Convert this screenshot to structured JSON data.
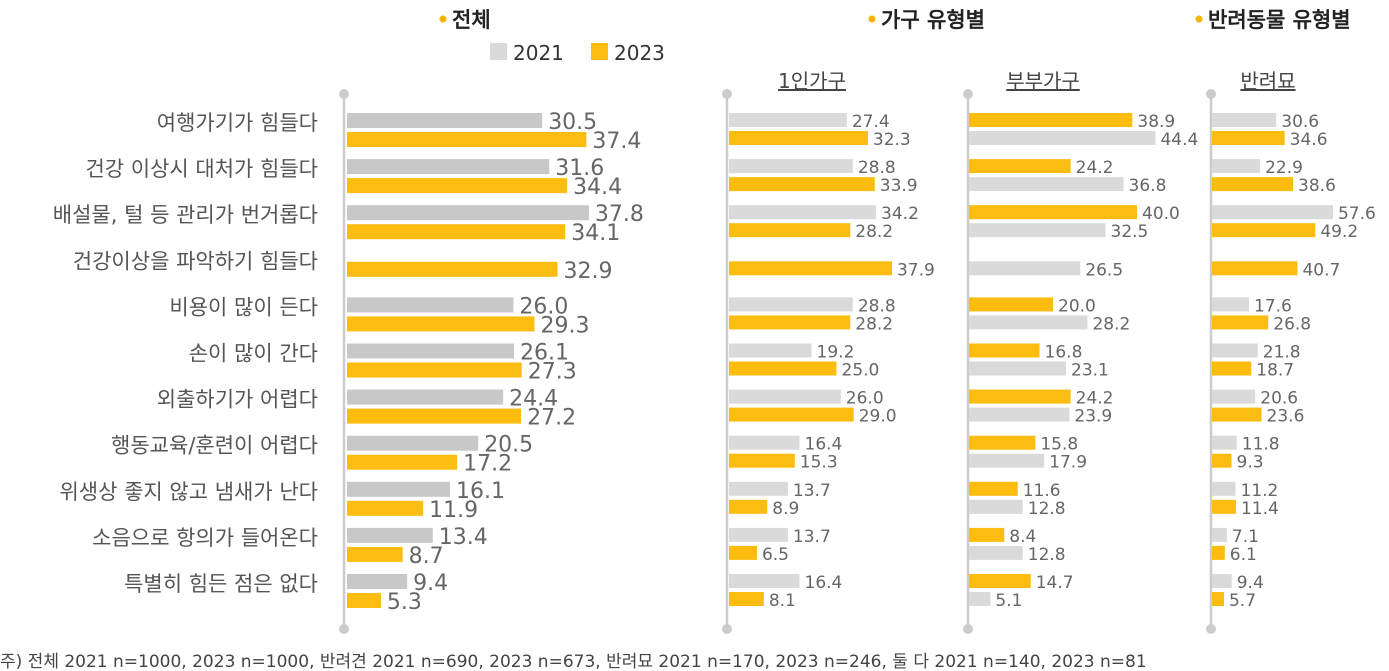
{
  "colors": {
    "y2021": "#dadada",
    "y2021_main": "#c8c8c8",
    "y2023": "#fcbd10",
    "dot": "#f5b400",
    "axis": "#cccccc"
  },
  "legend": {
    "y2021": "2021",
    "y2023": "2023"
  },
  "footnote": "주) 전체 2021 n=1000, 2023 n=1000, 반려견 2021 n=690, 2023 n=673, 반려묘 2021 n=170, 2023 n=246, 둘 다 2021 n=140, 2023 n=81",
  "chart_data": [
    {
      "type": "bar",
      "title": "전체",
      "categories": [
        "여행가기가 힘들다",
        "건강 이상시 대처가 힘들다",
        "배설물, 털 등 관리가 번거롭다",
        "건강이상을 파악하기 힘들다",
        "비용이 많이 든다",
        "손이 많이 간다",
        "외출하기가 어렵다",
        "행동교육/훈련이 어렵다",
        "위생상 좋지 않고 냄새가 난다",
        "소음으로 항의가 들어온다",
        "특별히 힘든 점은 없다"
      ],
      "series": [
        {
          "name": "2021",
          "values": [
            30.5,
            31.6,
            37.8,
            null,
            26.0,
            26.1,
            24.4,
            20.5,
            16.1,
            13.4,
            9.4
          ]
        },
        {
          "name": "2023",
          "values": [
            37.4,
            34.4,
            34.1,
            32.9,
            29.3,
            27.3,
            27.2,
            17.2,
            11.9,
            8.7,
            5.3
          ]
        }
      ]
    },
    {
      "type": "bar",
      "group": "가구 유형별",
      "title": "1인가구",
      "series": [
        {
          "name": "2021",
          "values": [
            27.4,
            28.8,
            34.2,
            null,
            28.8,
            19.2,
            26.0,
            16.4,
            13.7,
            13.7,
            16.4
          ]
        },
        {
          "name": "2023",
          "values": [
            32.3,
            33.9,
            28.2,
            37.9,
            28.2,
            25.0,
            29.0,
            15.3,
            8.9,
            6.5,
            8.1
          ]
        }
      ]
    },
    {
      "type": "bar",
      "group": "가구 유형별",
      "title": "부부가구",
      "series": [
        {
          "name": "2023",
          "values": [
            38.9,
            24.2,
            40.0,
            null,
            20.0,
            16.8,
            24.2,
            15.8,
            11.6,
            8.4,
            14.7
          ]
        },
        {
          "name": "2021",
          "values": [
            44.4,
            36.8,
            32.5,
            26.5,
            28.2,
            23.1,
            23.9,
            17.9,
            12.8,
            12.8,
            5.1
          ]
        }
      ]
    },
    {
      "type": "bar",
      "group": "반려동물 유형별",
      "title": "반려묘",
      "series": [
        {
          "name": "2021",
          "values": [
            30.6,
            22.9,
            57.6,
            null,
            17.6,
            21.8,
            20.6,
            11.8,
            11.2,
            7.1,
            9.4
          ]
        },
        {
          "name": "2023",
          "values": [
            34.6,
            38.6,
            49.2,
            40.7,
            26.8,
            18.7,
            23.6,
            9.3,
            11.4,
            6.1,
            5.7
          ]
        }
      ]
    }
  ]
}
